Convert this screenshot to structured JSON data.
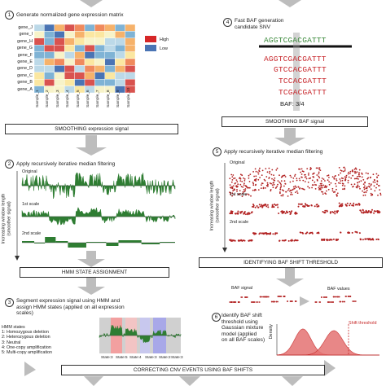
{
  "step1": {
    "num": "1",
    "title": "Generate normalized gene expression matrix"
  },
  "genes": [
    "gene_J",
    "gene_I",
    "gene_H",
    "gene_G",
    "gene_F",
    "gene_E",
    "gene_D",
    "gene_C",
    "gene_B",
    "gene_A"
  ],
  "samples": [
    "Sample_1",
    "Sample_2",
    "Sample_3",
    "Sample_4",
    "Sample_5",
    "Sample_6",
    "Sample_7",
    "Sample_8",
    "Sample_9",
    "Sample_10"
  ],
  "legend": {
    "high": "High",
    "low": "Low",
    "high_color": "#d62728",
    "low_color": "#4a74b4"
  },
  "smooth_expr": "SMOOTHING expression signal",
  "step2": {
    "num": "2",
    "title": "Apply recursively iterative median filtering",
    "ylabel1": "Increasing window length",
    "ylabel2": "(smoother signal)",
    "scales": [
      "Original",
      "1st scale",
      "2nd scale"
    ]
  },
  "hmm_box": "HMM STATE ASSIGNMENT",
  "step3": {
    "num": "3",
    "title1": "Segment expression signal using HMM and",
    "title2": "assign HMM states (applied on all expression",
    "title3": "scales)"
  },
  "hmm_states": {
    "heading": "HMM states",
    "items": [
      "1: Homozygous deletion",
      "2: Heterozygous deletion",
      "3: Neutral",
      "4: One-copy amplification",
      "5: Multi-copy amplification"
    ],
    "labels": [
      "State:3",
      "State:5",
      "State:4",
      "State:3",
      "State:2",
      "State:3"
    ]
  },
  "correct_box": "CORRECTING CNV EVENTS USING BAF SHIFTS",
  "step4": {
    "num": "4",
    "title1": "Fast BAF generation",
    "title2": "candidate SNV",
    "ref": "AGGTCGACGATTT",
    "reads": [
      "AGGTCGACGATTT",
      "GTCCACGATTT",
      "TCCACGATTT",
      "TCGACGATTT"
    ],
    "baf": "BAF: 3/4"
  },
  "smooth_baf": "SMOOTHING BAF signal",
  "step5": {
    "num": "5",
    "title": "Apply recursively iterative median filtering",
    "ylabel1": "Increasing window length",
    "ylabel2": "(smoother signal)",
    "scales": [
      "Original",
      "1st scale",
      "2nd scale"
    ]
  },
  "baf_box": "IDENTIFYING BAF SHIFT THRESHOLD",
  "baf_signal": "BAF signal",
  "baf_values": "BAF values",
  "step6": {
    "num": "6",
    "title1": "Identify BAF shift",
    "title2": "threshold using",
    "title3": "Gaussian mixture",
    "title4": "model (applied",
    "title5": "on all BAF scales)"
  },
  "density": "Density",
  "shift_threshold": "Shift threshold",
  "colors": {
    "green": "#2e7d32",
    "red": "#b22222",
    "arrow": "#bdbdbd"
  }
}
